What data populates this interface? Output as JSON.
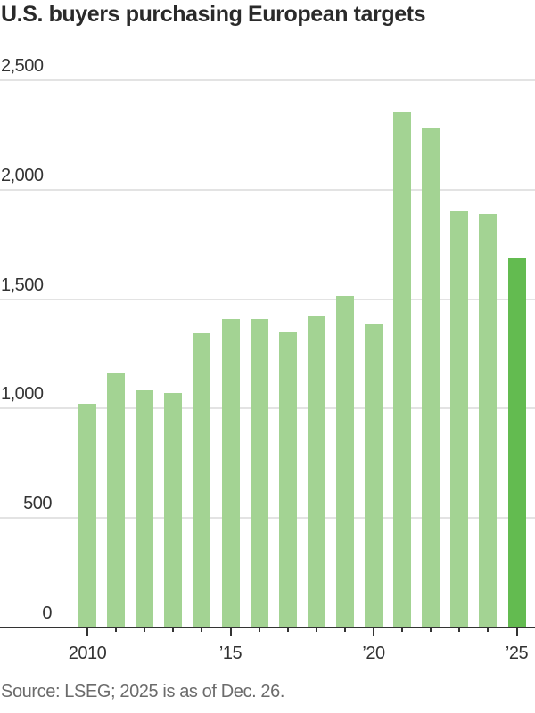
{
  "title": "U.S. buyers purchasing European targets",
  "source": "Source: LSEG; 2025 is as of Dec. 26.",
  "colors": {
    "bar": "#a3d393",
    "highlight": "#63bb50",
    "grid": "#e3e3e3",
    "axis": "#333333"
  },
  "y_ticks": [
    {
      "value": 2500,
      "label": "2,500"
    },
    {
      "value": 2000,
      "label": "2,000"
    },
    {
      "value": 1500,
      "label": "1,500"
    },
    {
      "value": 1000,
      "label": "1,000"
    },
    {
      "value": 500,
      "label": "500"
    },
    {
      "value": 0,
      "label": "0"
    }
  ],
  "x_ticks": [
    {
      "year": 2010,
      "label": "2010"
    },
    {
      "year": 2015,
      "label": "’15"
    },
    {
      "year": 2020,
      "label": "’20"
    },
    {
      "year": 2025,
      "label": "’25"
    }
  ],
  "chart_data": {
    "type": "bar",
    "title": "U.S. buyers purchasing European targets",
    "xlabel": "",
    "ylabel": "",
    "categories": [
      "2010",
      "2011",
      "2012",
      "2013",
      "2014",
      "2015",
      "2016",
      "2017",
      "2018",
      "2019",
      "2020",
      "2021",
      "2022",
      "2023",
      "2024",
      "2025"
    ],
    "values": [
      1020,
      1160,
      1085,
      1070,
      1345,
      1410,
      1410,
      1350,
      1425,
      1515,
      1385,
      2355,
      2280,
      1900,
      1890,
      1685
    ],
    "highlight": [
      "2025"
    ],
    "ylim": [
      0,
      2500
    ],
    "y_ticks": [
      0,
      500,
      1000,
      1500,
      2000,
      2500
    ],
    "x_tick_labels": [
      "2010",
      "’15",
      "’20",
      "’25"
    ],
    "grid": true,
    "legend": null,
    "annotations": [
      "Source: LSEG; 2025 is as of Dec. 26."
    ]
  }
}
